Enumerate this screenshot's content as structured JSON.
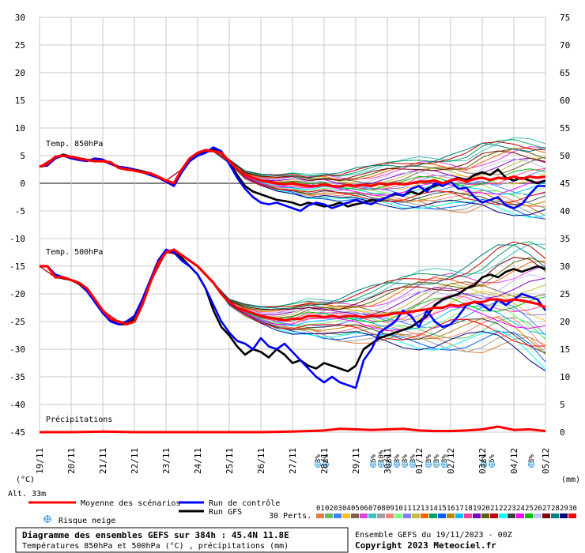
{
  "chart_data": {
    "type": "line",
    "title": "Diagramme des ensembles GEFS sur 384h : 45.4N 11.8E",
    "subtitle": "Températures 850hPa et 500hPa (°C) , précipitations (mm)",
    "run_label": "Ensemble GEFS du 19/11/2023 - 00Z",
    "copyright": "Copyright 2023 Meteociel.fr",
    "altitude_label": "Alt. 33m",
    "left_axis_label": "(°C)",
    "right_axis_label": "(mm)",
    "y_left_ticks": [
      30,
      25,
      20,
      15,
      10,
      5,
      0,
      -5,
      -10,
      -15,
      -20,
      -25,
      -30,
      -35,
      -40,
      -45
    ],
    "y_right_ticks": [
      75,
      70,
      65,
      60,
      55,
      50,
      45,
      40,
      35,
      30,
      25,
      20,
      15,
      10,
      5,
      0
    ],
    "ylim_left": [
      -45,
      30
    ],
    "x_dates": [
      "19/11",
      "20/11",
      "21/11",
      "22/11",
      "23/11",
      "24/11",
      "25/11",
      "26/11",
      "27/11",
      "28/11",
      "29/11",
      "30/11",
      "01/12",
      "02/12",
      "03/12",
      "04/12",
      "05/12"
    ],
    "hours_range": [
      0,
      384
    ],
    "section_labels": {
      "t850": "Temp. 850hPa",
      "t500": "Temp. 500hPa",
      "precip": "Précipitations"
    },
    "legend": {
      "mean": "Moyenne des scénarios",
      "control": "Run de contrôle",
      "gfs": "Run GFS",
      "snow": "Risque neige",
      "perturbations": "30 Perts."
    },
    "member_labels": [
      "01",
      "02",
      "03",
      "04",
      "05",
      "06",
      "07",
      "08",
      "09",
      "10",
      "11",
      "12",
      "13",
      "14",
      "15",
      "16",
      "17",
      "18",
      "19",
      "20",
      "21",
      "22",
      "23",
      "24",
      "25",
      "26",
      "27",
      "28",
      "29",
      "30"
    ],
    "member_colors": [
      "#e08040",
      "#60c060",
      "#4080ff",
      "#ffc020",
      "#806040",
      "#e040e0",
      "#40c0c0",
      "#a0a0a0",
      "#ff8080",
      "#80ff80",
      "#8080ff",
      "#c0c040",
      "#ff6000",
      "#00a060",
      "#0060ff",
      "#c08000",
      "#00c0ff",
      "#ff40a0",
      "#8000c0",
      "#606000",
      "#c00000",
      "#00ffff",
      "#404040",
      "#ff00ff",
      "#00c000",
      "#c0c0ff",
      "#800000",
      "#008080",
      "#000080",
      "#ff0000"
    ],
    "snow_markers": [
      {
        "hours": 216,
        "text": "3%"
      },
      {
        "hours": 222,
        "text": "3%"
      },
      {
        "hours": 258,
        "text": "6%"
      },
      {
        "hours": 264,
        "text": "10%"
      },
      {
        "hours": 270,
        "text": "3%"
      },
      {
        "hours": 276,
        "text": "3%"
      },
      {
        "hours": 282,
        "text": "3%"
      },
      {
        "hours": 288,
        "text": "3%"
      },
      {
        "hours": 300,
        "text": "3%"
      },
      {
        "hours": 306,
        "text": "3%"
      },
      {
        "hours": 312,
        "text": "3%"
      },
      {
        "hours": 342,
        "text": "3%"
      },
      {
        "hours": 348,
        "text": "6%"
      },
      {
        "hours": 378,
        "text": "3%"
      }
    ],
    "series": [
      {
        "name": "Moyenne des scénarios",
        "panel": "t850",
        "color": "#ff0000",
        "x": [
          0,
          6,
          12,
          18,
          24,
          30,
          36,
          42,
          48,
          54,
          60,
          66,
          72,
          78,
          84,
          90,
          96,
          102,
          108,
          114,
          120,
          126,
          132,
          138,
          144,
          150,
          156,
          162,
          168,
          174,
          180,
          186,
          192,
          198,
          204,
          210,
          216,
          222,
          228,
          234,
          240,
          246,
          252,
          258,
          264,
          270,
          276,
          282,
          288,
          294,
          300,
          306,
          312,
          318,
          324,
          330,
          336,
          342,
          348,
          354,
          360,
          366,
          372,
          378,
          384
        ],
        "y": [
          3.0,
          3.5,
          4.8,
          5.0,
          4.8,
          4.5,
          4.2,
          4.0,
          4.0,
          3.8,
          2.8,
          2.5,
          2.3,
          2.0,
          1.8,
          1.2,
          0.5,
          0.0,
          2.5,
          4.5,
          5.5,
          6.0,
          5.8,
          5.5,
          4.0,
          2.5,
          1.5,
          1.0,
          0.5,
          0.3,
          0.0,
          -0.2,
          0.0,
          -0.3,
          -0.5,
          -0.5,
          -0.2,
          -0.5,
          -0.6,
          -0.3,
          -0.5,
          -0.3,
          -0.5,
          0.0,
          -0.3,
          0.0,
          -0.2,
          0.0,
          0.3,
          0.3,
          0.5,
          0.0,
          0.5,
          0.8,
          0.3,
          0.8,
          1.0,
          0.6,
          1.0,
          0.8,
          1.2,
          0.8,
          1.2,
          1.0,
          1.2
        ]
      },
      {
        "name": "Run de contrôle",
        "panel": "t850",
        "color": "#0000ff",
        "x": [
          0,
          6,
          12,
          18,
          24,
          30,
          36,
          42,
          48,
          54,
          60,
          66,
          72,
          78,
          84,
          90,
          96,
          102,
          108,
          114,
          120,
          126,
          132,
          138,
          144,
          150,
          156,
          162,
          168,
          174,
          180,
          186,
          192,
          198,
          204,
          210,
          216,
          222,
          228,
          234,
          240,
          246,
          252,
          258,
          264,
          270,
          276,
          282,
          288,
          294,
          300,
          306,
          312,
          318,
          324,
          330,
          336,
          342,
          348,
          354,
          360,
          366,
          372,
          378,
          384
        ],
        "y": [
          3.0,
          3.2,
          4.5,
          5.0,
          4.5,
          4.2,
          4.0,
          4.5,
          4.3,
          3.5,
          3.0,
          2.8,
          2.5,
          2.0,
          1.5,
          1.0,
          0.3,
          -0.5,
          2.0,
          4.0,
          5.0,
          5.5,
          6.5,
          5.8,
          3.5,
          1.0,
          -1.0,
          -2.5,
          -3.5,
          -3.8,
          -3.5,
          -4.0,
          -4.5,
          -5.0,
          -4.0,
          -3.5,
          -3.8,
          -4.5,
          -4.0,
          -3.5,
          -3.0,
          -3.5,
          -3.8,
          -3.0,
          -2.5,
          -1.8,
          -2.3,
          -1.0,
          -0.5,
          -1.5,
          0.0,
          -0.5,
          0.3,
          -1.0,
          -0.8,
          -2.5,
          -3.5,
          -3.0,
          -2.5,
          -4.0,
          -4.5,
          -3.8,
          -2.0,
          -0.5,
          -0.5
        ]
      },
      {
        "name": "Run GFS",
        "panel": "t850",
        "color": "#000000",
        "x": [
          0,
          6,
          12,
          18,
          24,
          30,
          36,
          42,
          48,
          54,
          60,
          66,
          72,
          78,
          84,
          90,
          96,
          102,
          108,
          114,
          120,
          126,
          132,
          138,
          144,
          150,
          156,
          162,
          168,
          174,
          180,
          186,
          192,
          198,
          204,
          210,
          216,
          222,
          228,
          234,
          240,
          246,
          252,
          258,
          264,
          270,
          276,
          282,
          288,
          294,
          300,
          306,
          312,
          318,
          324,
          330,
          336,
          342,
          348,
          354,
          360,
          366,
          372,
          378,
          384
        ],
        "y": [
          3.0,
          3.3,
          4.6,
          5.2,
          4.8,
          4.3,
          4.2,
          4.2,
          4.0,
          3.6,
          3.0,
          2.8,
          2.5,
          2.2,
          1.8,
          1.2,
          0.5,
          -0.2,
          2.2,
          4.2,
          5.2,
          5.8,
          6.2,
          5.5,
          3.8,
          1.5,
          -0.5,
          -1.5,
          -2.0,
          -2.5,
          -3.0,
          -3.2,
          -3.5,
          -4.0,
          -3.5,
          -3.8,
          -4.2,
          -4.0,
          -3.5,
          -4.2,
          -3.8,
          -3.5,
          -3.0,
          -3.2,
          -2.5,
          -2.0,
          -2.2,
          -1.5,
          -2.0,
          -1.0,
          -0.5,
          0.0,
          0.5,
          1.0,
          0.5,
          1.5,
          2.0,
          1.5,
          2.5,
          1.0,
          0.5,
          1.0,
          0.5,
          0.0,
          0.5
        ]
      },
      {
        "name": "Moyenne des scénarios",
        "panel": "t500",
        "color": "#ff0000",
        "x": [
          0,
          6,
          12,
          18,
          24,
          30,
          36,
          42,
          48,
          54,
          60,
          66,
          72,
          78,
          84,
          90,
          96,
          102,
          108,
          114,
          120,
          126,
          132,
          138,
          144,
          150,
          156,
          162,
          168,
          174,
          180,
          186,
          192,
          198,
          204,
          210,
          216,
          222,
          228,
          234,
          240,
          246,
          252,
          258,
          264,
          270,
          276,
          282,
          288,
          294,
          300,
          306,
          312,
          318,
          324,
          330,
          336,
          342,
          348,
          354,
          360,
          366,
          372,
          378,
          384
        ],
        "y": [
          -15.0,
          -15.0,
          -17.0,
          -17.0,
          -17.5,
          -18.0,
          -19.0,
          -21.0,
          -23.0,
          -24.5,
          -25.0,
          -25.5,
          -25.0,
          -22.0,
          -18.0,
          -14.5,
          -12.5,
          -12.0,
          -13.0,
          -14.0,
          -15.0,
          -16.5,
          -18.0,
          -20.0,
          -21.5,
          -22.5,
          -23.0,
          -23.5,
          -24.0,
          -24.3,
          -24.5,
          -24.8,
          -24.5,
          -24.5,
          -24.0,
          -24.0,
          -24.2,
          -24.0,
          -24.2,
          -24.0,
          -24.0,
          -24.2,
          -24.0,
          -24.0,
          -23.8,
          -23.5,
          -23.5,
          -23.2,
          -23.0,
          -22.8,
          -22.5,
          -22.5,
          -22.0,
          -22.2,
          -21.8,
          -21.5,
          -21.5,
          -21.0,
          -21.0,
          -21.3,
          -21.0,
          -21.2,
          -21.5,
          -21.8,
          -22.5
        ]
      },
      {
        "name": "Run de contrôle",
        "panel": "t500",
        "color": "#0000ff",
        "x": [
          0,
          6,
          12,
          18,
          24,
          30,
          36,
          42,
          48,
          54,
          60,
          66,
          72,
          78,
          84,
          90,
          96,
          102,
          108,
          114,
          120,
          126,
          132,
          138,
          144,
          150,
          156,
          162,
          168,
          174,
          180,
          186,
          192,
          198,
          204,
          210,
          216,
          222,
          228,
          234,
          240,
          246,
          252,
          258,
          264,
          270,
          276,
          282,
          288,
          294,
          300,
          306,
          312,
          318,
          324,
          330,
          336,
          342,
          348,
          354,
          360,
          366,
          372,
          378,
          384
        ],
        "y": [
          -15.0,
          -15.0,
          -16.5,
          -17.0,
          -17.5,
          -18.0,
          -19.5,
          -21.5,
          -23.5,
          -25.0,
          -25.5,
          -25.0,
          -24.0,
          -21.0,
          -17.5,
          -14.0,
          -12.0,
          -12.5,
          -14.0,
          -15.0,
          -16.5,
          -19.0,
          -22.0,
          -25.0,
          -27.0,
          -28.5,
          -29.0,
          -30.0,
          -28.0,
          -29.5,
          -30.0,
          -29.0,
          -30.5,
          -32.0,
          -33.5,
          -35.0,
          -36.0,
          -35.0,
          -36.0,
          -36.5,
          -37.0,
          -32.0,
          -30.0,
          -27.0,
          -26.0,
          -25.0,
          -23.0,
          -24.0,
          -26.0,
          -23.0,
          -25.0,
          -26.0,
          -25.5,
          -24.0,
          -22.0,
          -21.5,
          -22.0,
          -23.0,
          -21.0,
          -22.0,
          -21.0,
          -20.0,
          -20.5,
          -21.0,
          -23.0
        ]
      },
      {
        "name": "Run GFS",
        "panel": "t500",
        "color": "#000000",
        "x": [
          0,
          6,
          12,
          18,
          24,
          30,
          36,
          42,
          48,
          54,
          60,
          66,
          72,
          78,
          84,
          90,
          96,
          102,
          108,
          114,
          120,
          126,
          132,
          138,
          144,
          150,
          156,
          162,
          168,
          174,
          180,
          186,
          192,
          198,
          204,
          210,
          216,
          222,
          228,
          234,
          240,
          246,
          252,
          258,
          264,
          270,
          276,
          282,
          288,
          294,
          300,
          306,
          312,
          318,
          324,
          330,
          336,
          342,
          348,
          354,
          360,
          366,
          372,
          378,
          384
        ],
        "y": [
          -15.0,
          -15.0,
          -16.8,
          -17.2,
          -17.5,
          -18.2,
          -19.5,
          -21.0,
          -23.2,
          -24.8,
          -25.5,
          -25.5,
          -24.5,
          -21.5,
          -17.8,
          -14.2,
          -12.2,
          -12.5,
          -13.5,
          -15.0,
          -16.5,
          -19.0,
          -23.0,
          -26.0,
          -27.5,
          -29.5,
          -31.0,
          -30.0,
          -30.5,
          -31.5,
          -30.0,
          -31.0,
          -32.5,
          -32.0,
          -33.0,
          -33.5,
          -32.5,
          -33.0,
          -33.5,
          -34.0,
          -33.0,
          -30.0,
          -29.0,
          -28.0,
          -27.5,
          -27.0,
          -26.5,
          -26.0,
          -25.0,
          -24.0,
          -22.0,
          -21.0,
          -20.5,
          -20.0,
          -19.0,
          -18.5,
          -17.0,
          -16.5,
          -17.0,
          -16.0,
          -15.5,
          -16.0,
          -15.5,
          -15.0,
          -15.5
        ]
      },
      {
        "name": "Moyenne des scénarios",
        "panel": "precip",
        "color": "#ff0000",
        "x": [
          0,
          24,
          48,
          72,
          96,
          120,
          144,
          168,
          192,
          204,
          216,
          228,
          240,
          252,
          264,
          276,
          288,
          300,
          312,
          324,
          336,
          348,
          360,
          372,
          384
        ],
        "y": [
          0.0,
          0.0,
          0.1,
          0.0,
          0.0,
          0.0,
          0.0,
          0.0,
          0.1,
          0.2,
          0.3,
          0.6,
          0.5,
          0.4,
          0.5,
          0.6,
          0.3,
          0.2,
          0.2,
          0.3,
          0.5,
          1.0,
          0.4,
          0.5,
          0.2
        ]
      }
    ]
  }
}
